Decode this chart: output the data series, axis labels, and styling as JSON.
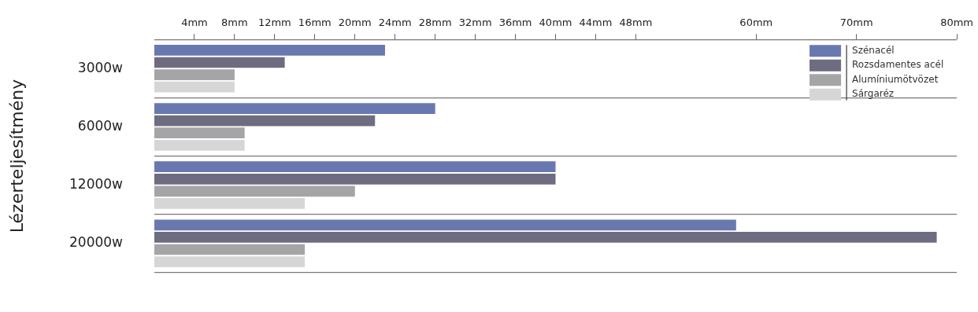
{
  "chart_data": {
    "type": "bar",
    "orientation": "horizontal",
    "ylabel": "Lézerteljesítmény",
    "categories": [
      "3000w",
      "6000w",
      "12000w",
      "20000w"
    ],
    "series": [
      {
        "name": "Szénacél",
        "color": "#6a78b0",
        "values": [
          23,
          28,
          40,
          58
        ]
      },
      {
        "name": "Rozsdamentes acél",
        "color": "#6e6c80",
        "values": [
          13,
          22,
          40,
          78
        ]
      },
      {
        "name": "Alumíniumötvözet",
        "color": "#a5a5a8",
        "values": [
          8,
          9,
          20,
          15
        ]
      },
      {
        "name": "Sárgaréz",
        "color": "#d6d6d6",
        "values": [
          8,
          9,
          15,
          15
        ]
      }
    ],
    "xlim": [
      0,
      80
    ],
    "xticks": [
      {
        "value": 4,
        "label": "4mm"
      },
      {
        "value": 8,
        "label": "8mm"
      },
      {
        "value": 12,
        "label": "12mm"
      },
      {
        "value": 16,
        "label": "16mm"
      },
      {
        "value": 20,
        "label": "20mm"
      },
      {
        "value": 24,
        "label": "24mm"
      },
      {
        "value": 28,
        "label": "28mm"
      },
      {
        "value": 32,
        "label": "32mm"
      },
      {
        "value": 36,
        "label": "36mm"
      },
      {
        "value": 40,
        "label": "40mm"
      },
      {
        "value": 44,
        "label": "44mm"
      },
      {
        "value": 48,
        "label": "48mm"
      },
      {
        "value": 60,
        "label": "60mm"
      },
      {
        "value": 70,
        "label": "70mm"
      },
      {
        "value": 80,
        "label": "80mm"
      }
    ],
    "grid": "y",
    "legend": "top right"
  }
}
